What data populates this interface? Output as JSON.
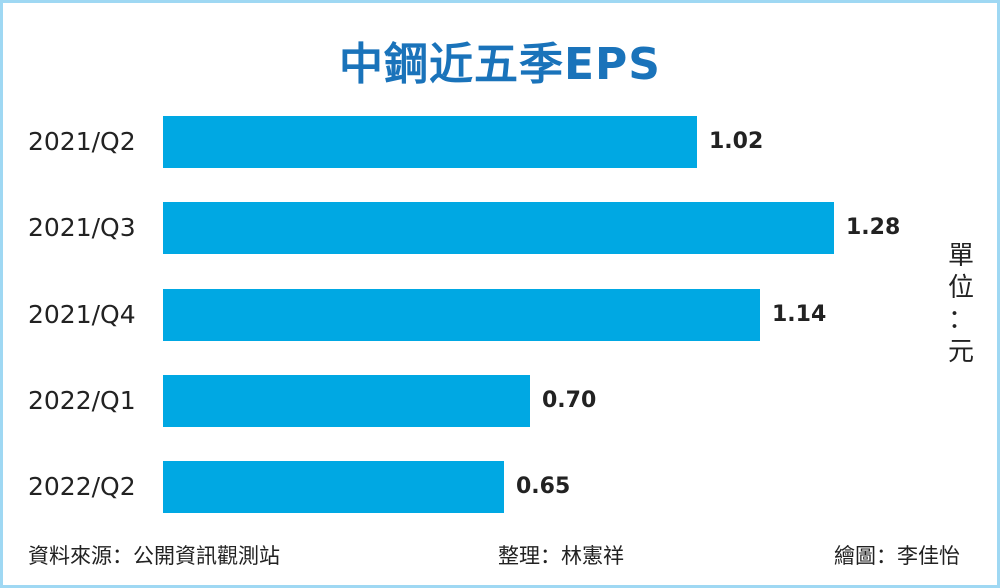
{
  "title": "中鋼近五季EPS",
  "unit_label": "單位：元",
  "unit_chars": [
    "單",
    "位",
    "：",
    "元"
  ],
  "footer": {
    "source": "資料來源：公開資訊觀測站",
    "editor": "整理：林憲祥",
    "artist": "繪圖：李佳怡"
  },
  "colors": {
    "bar": "#00a8e3",
    "title": "#1a73ba",
    "border": "#9fd8f3"
  },
  "rows": [
    {
      "label": "2021/Q2",
      "value": "1.02"
    },
    {
      "label": "2021/Q3",
      "value": "1.28"
    },
    {
      "label": "2021/Q4",
      "value": "1.14"
    },
    {
      "label": "2022/Q1",
      "value": "0.70"
    },
    {
      "label": "2022/Q2",
      "value": "0.65"
    }
  ],
  "chart_data": {
    "type": "bar",
    "orientation": "horizontal",
    "title": "中鋼近五季EPS",
    "categories": [
      "2021/Q2",
      "2021/Q3",
      "2021/Q4",
      "2022/Q1",
      "2022/Q2"
    ],
    "values": [
      1.02,
      1.28,
      1.14,
      0.7,
      0.65
    ],
    "xlabel": "",
    "ylabel": "",
    "unit": "單位：元",
    "grid": false,
    "data_labels": true,
    "source": "資料來源：公開資訊觀測站"
  }
}
